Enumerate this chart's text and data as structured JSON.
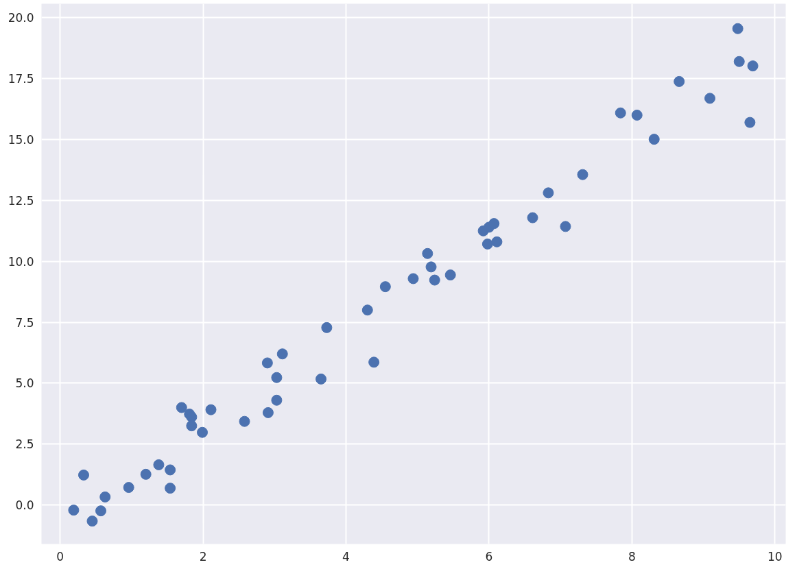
{
  "chart_data": {
    "type": "scatter",
    "marker": "circle",
    "grid": true,
    "xlim": [
      -0.26,
      10.15
    ],
    "ylim": [
      -1.6,
      20.57
    ],
    "xticks": [
      0,
      2,
      4,
      6,
      8,
      10
    ],
    "yticks": [
      {
        "value": 0,
        "label": "0.0"
      },
      {
        "value": 2.5,
        "label": "2.5"
      },
      {
        "value": 5,
        "label": "5.0"
      },
      {
        "value": 7.5,
        "label": "7.5"
      },
      {
        "value": 10,
        "label": "10.0"
      },
      {
        "value": 12.5,
        "label": "12.5"
      },
      {
        "value": 15,
        "label": "15.0"
      },
      {
        "value": 17.5,
        "label": "17.5"
      },
      {
        "value": 20,
        "label": "20.0"
      }
    ],
    "series": [
      {
        "color": "#4c72b0",
        "x": [
          0.19,
          0.33,
          0.45,
          0.57,
          0.63,
          0.96,
          1.2,
          1.38,
          1.54,
          1.54,
          1.7,
          1.81,
          1.84,
          1.84,
          1.99,
          2.11,
          2.58,
          2.9,
          2.91,
          3.03,
          3.03,
          3.11,
          3.65,
          3.73,
          4.3,
          4.39,
          4.55,
          4.94,
          5.14,
          5.19,
          5.24,
          5.46,
          5.92,
          6.0,
          6.07,
          5.98,
          6.11,
          6.61,
          6.83,
          7.07,
          7.31,
          7.84,
          8.07,
          8.31,
          8.66,
          9.09,
          9.48,
          9.5,
          9.69,
          9.65
        ],
        "values": [
          -0.21,
          1.23,
          -0.66,
          -0.24,
          0.33,
          0.72,
          1.26,
          1.65,
          1.44,
          0.69,
          4.0,
          3.73,
          3.61,
          3.25,
          2.98,
          3.91,
          3.43,
          5.83,
          3.79,
          5.23,
          4.3,
          6.2,
          5.17,
          7.28,
          8.0,
          5.86,
          8.96,
          9.29,
          10.32,
          9.77,
          9.23,
          9.44,
          11.25,
          11.4,
          11.55,
          10.71,
          10.8,
          11.79,
          12.81,
          11.43,
          13.56,
          16.09,
          16.0,
          15.01,
          17.38,
          16.69,
          19.55,
          18.2,
          18.02,
          15.7
        ]
      }
    ]
  }
}
